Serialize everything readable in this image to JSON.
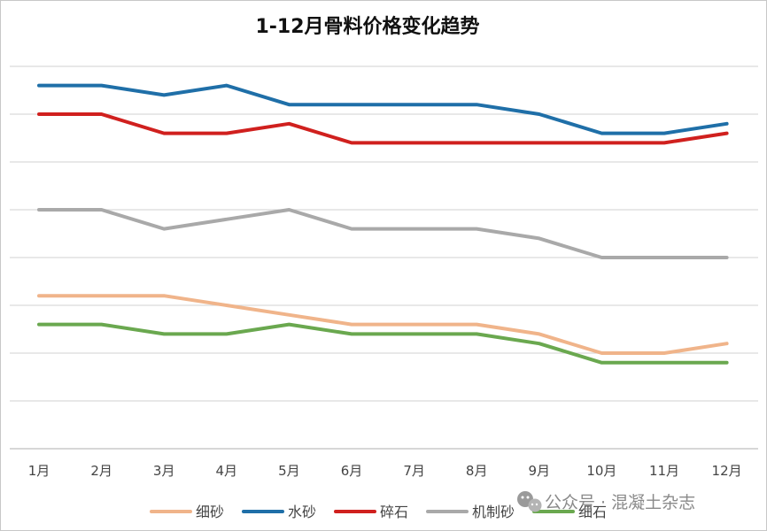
{
  "chart_data": {
    "type": "line",
    "title": "1-12月骨料价格变化趋势",
    "categories": [
      "1月",
      "2月",
      "3月",
      "4月",
      "5月",
      "6月",
      "7月",
      "8月",
      "9月",
      "10月",
      "11月",
      "12月"
    ],
    "ylim": [
      0,
      8
    ],
    "yticks": [
      0,
      1,
      2,
      3,
      4,
      5,
      6,
      7,
      8
    ],
    "y_tick_labels_shown": false,
    "grid": true,
    "legend_position": "bottom",
    "series": [
      {
        "name": "细砂",
        "color": "#f0b48a",
        "values": [
          3.2,
          3.2,
          3.2,
          3.0,
          2.8,
          2.6,
          2.6,
          2.6,
          2.4,
          2.0,
          2.0,
          2.2
        ]
      },
      {
        "name": "水砂",
        "color": "#1f6fa8",
        "values": [
          7.6,
          7.6,
          7.4,
          7.6,
          7.2,
          7.2,
          7.2,
          7.2,
          7.0,
          6.6,
          6.6,
          6.8
        ]
      },
      {
        "name": "碎石",
        "color": "#d0201e",
        "values": [
          7.0,
          7.0,
          6.6,
          6.6,
          6.8,
          6.4,
          6.4,
          6.4,
          6.4,
          6.4,
          6.4,
          6.6
        ]
      },
      {
        "name": "机制砂",
        "color": "#a9a9a9",
        "values": [
          5.0,
          5.0,
          4.6,
          4.8,
          5.0,
          4.6,
          4.6,
          4.6,
          4.4,
          4.0,
          4.0,
          4.0
        ]
      },
      {
        "name": "细石",
        "color": "#6aa84f",
        "values": [
          2.6,
          2.6,
          2.4,
          2.4,
          2.6,
          2.4,
          2.4,
          2.4,
          2.2,
          1.8,
          1.8,
          1.8
        ]
      }
    ]
  },
  "watermark": {
    "icon": "wechat-icon",
    "text": "公众号 · 混凝土杂志"
  }
}
